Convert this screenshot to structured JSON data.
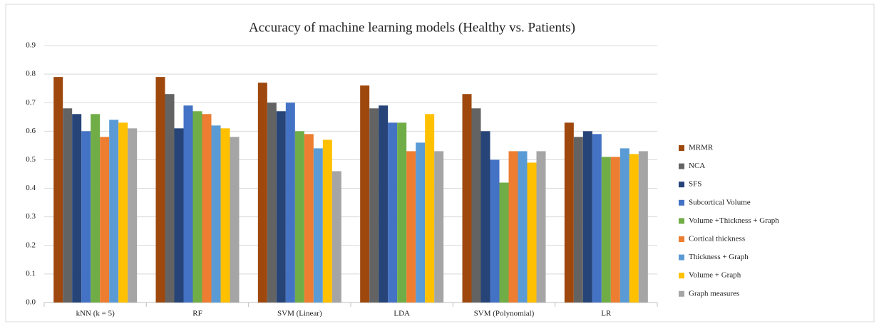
{
  "chart_data": {
    "type": "bar",
    "title": "Accuracy of machine learning models (Healthy vs. Patients)",
    "categories": [
      "kNN (k = 5)",
      "RF",
      "SVM (Linear)",
      "LDA",
      "SVM (Polynomial)",
      "LR"
    ],
    "series": [
      {
        "name": "MRMR",
        "color": "#9e480e",
        "values": [
          0.79,
          0.79,
          0.77,
          0.76,
          0.73,
          0.63
        ]
      },
      {
        "name": "NCA",
        "color": "#636363",
        "values": [
          0.68,
          0.73,
          0.7,
          0.68,
          0.68,
          0.58
        ]
      },
      {
        "name": "SFS",
        "color": "#264478",
        "values": [
          0.66,
          0.61,
          0.67,
          0.69,
          0.6,
          0.6
        ]
      },
      {
        "name": "Subcortical Volume",
        "color": "#4472c4",
        "values": [
          0.6,
          0.69,
          0.7,
          0.63,
          0.5,
          0.59
        ]
      },
      {
        "name": "Volume +Thickness + Graph",
        "color": "#70ad47",
        "values": [
          0.66,
          0.67,
          0.6,
          0.63,
          0.42,
          0.51
        ]
      },
      {
        "name": "Cortical thickness",
        "color": "#ed7d31",
        "values": [
          0.58,
          0.66,
          0.59,
          0.53,
          0.53,
          0.51
        ]
      },
      {
        "name": "Thickness + Graph",
        "color": "#5b9bd5",
        "values": [
          0.64,
          0.62,
          0.54,
          0.56,
          0.53,
          0.54
        ]
      },
      {
        "name": "Volume + Graph",
        "color": "#ffc000",
        "values": [
          0.63,
          0.61,
          0.57,
          0.66,
          0.49,
          0.52
        ]
      },
      {
        "name": "Graph measures",
        "color": "#a5a5a5",
        "values": [
          0.61,
          0.58,
          0.46,
          0.53,
          0.53,
          0.53
        ]
      }
    ],
    "ylim": [
      0,
      0.9
    ],
    "yticks": [
      {
        "value": 0,
        "label": "0.0"
      },
      0.1,
      0.2,
      0.3,
      0.4,
      0.5,
      0.6,
      0.7,
      0.8,
      0.9
    ],
    "grid": true,
    "legend": "right"
  }
}
